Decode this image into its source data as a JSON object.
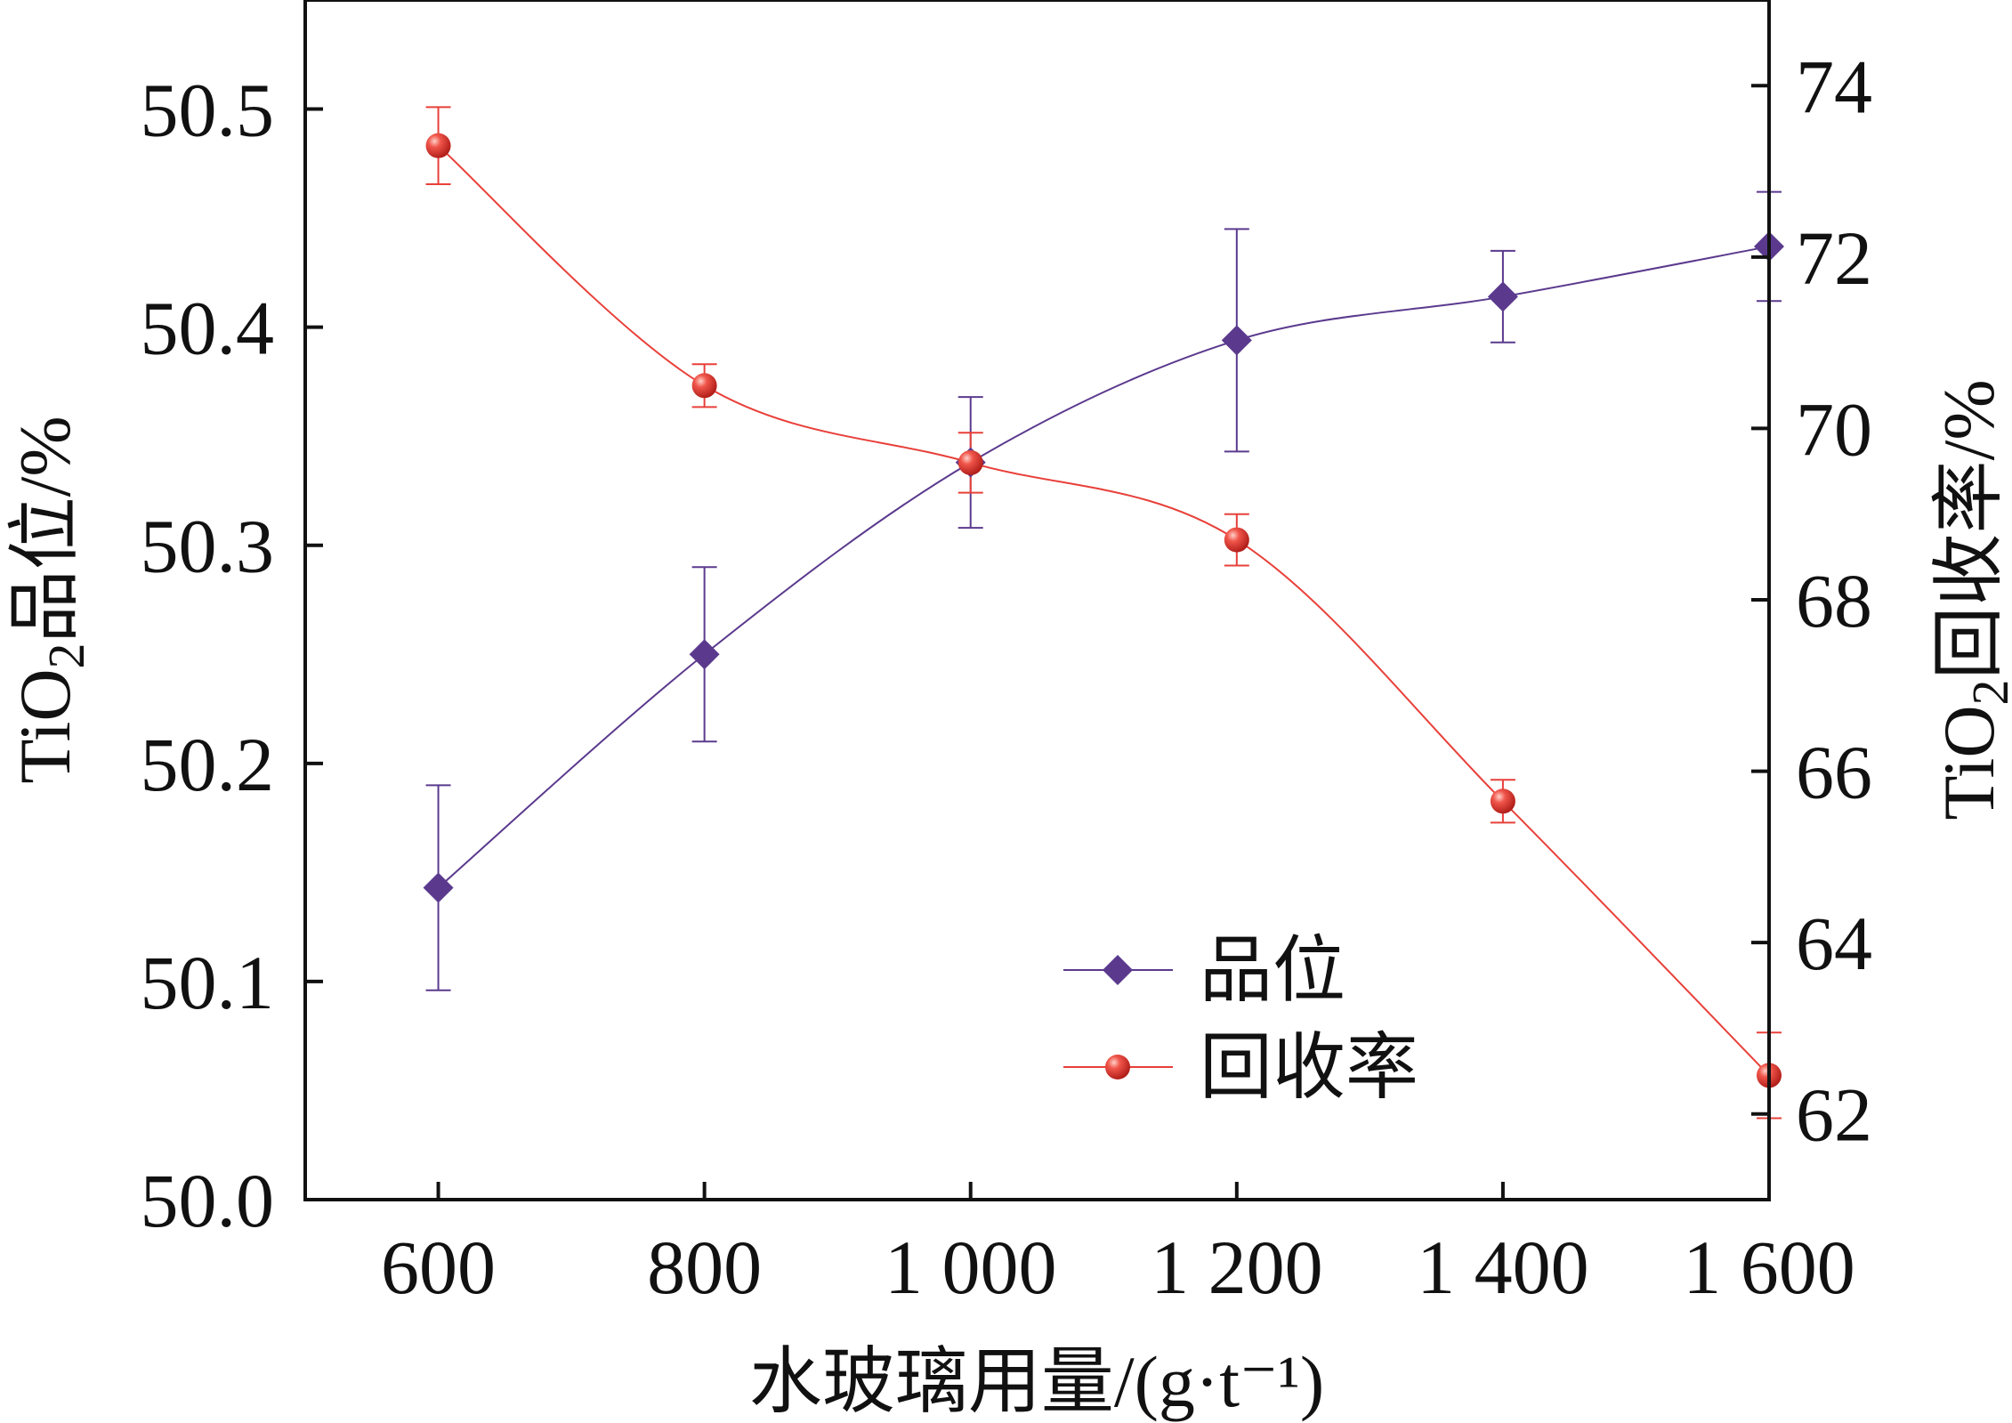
{
  "chart_data": {
    "type": "line",
    "title": "",
    "xlabel": "水玻璃用量/(g·t⁻¹)",
    "ylabel_left_prefix": "TiO",
    "ylabel_left_sub": "2",
    "ylabel_left_suffix": "品位/%",
    "ylabel_right_prefix": "TiO",
    "ylabel_right_sub": "2",
    "ylabel_right_suffix": "回收率/%",
    "x": [
      600,
      800,
      1000,
      1200,
      1400,
      1600
    ],
    "x_tick_labels": [
      "600",
      "800",
      "1 000",
      "1 200",
      "1 400",
      "1 600"
    ],
    "xlim": [
      500,
      1600
    ],
    "ylim_left": [
      50.0,
      50.55
    ],
    "ylim_right": [
      61.0,
      75.0
    ],
    "y_left_ticks": [
      50.0,
      50.1,
      50.2,
      50.3,
      50.4,
      50.5
    ],
    "y_left_tick_labels": [
      "50.0",
      "50.1",
      "50.2",
      "50.3",
      "50.4",
      "50.5"
    ],
    "y_right_ticks": [
      62,
      64,
      66,
      68,
      70,
      72,
      74
    ],
    "y_right_tick_labels": [
      "62",
      "64",
      "66",
      "68",
      "70",
      "72",
      "74"
    ],
    "grid": false,
    "legend_position": "bottom-center",
    "series": [
      {
        "name": "品位",
        "axis": "left",
        "marker": "diamond",
        "color": "#5b3a8e",
        "values": [
          50.143,
          50.25,
          50.338,
          50.394,
          50.414,
          50.437
        ],
        "error": [
          0.047,
          0.04,
          0.03,
          0.051,
          0.021,
          0.025
        ]
      },
      {
        "name": "回收率",
        "axis": "right",
        "marker": "circle",
        "color": "#e8403a",
        "values": [
          73.3,
          70.5,
          69.6,
          68.7,
          65.65,
          62.45
        ],
        "error": [
          0.45,
          0.25,
          0.35,
          0.3,
          0.25,
          0.5
        ]
      }
    ]
  }
}
